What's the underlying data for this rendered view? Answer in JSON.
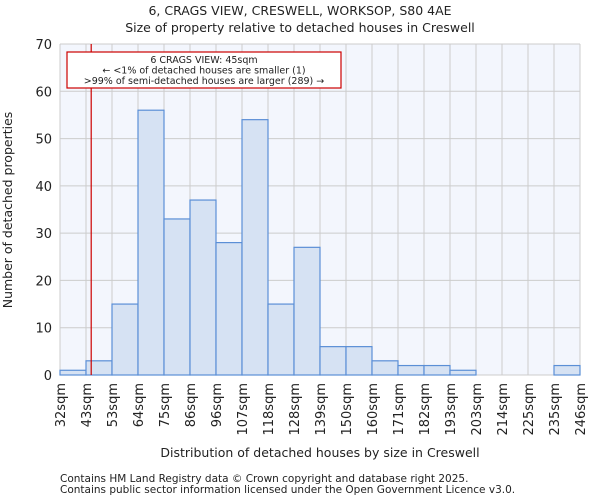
{
  "chart_data": {
    "type": "bar",
    "title": "6, CRAGS VIEW, CRESWELL, WORKSOP, S80 4AE",
    "subtitle": "Size of property relative to detached houses in Creswell",
    "xlabel": "Distribution of detached houses by size in Creswell",
    "ylabel": "Number of detached properties",
    "ylim": [
      0,
      70
    ],
    "yticks": [
      0,
      10,
      20,
      30,
      40,
      50,
      60,
      70
    ],
    "bin_edges_labels": [
      "32sqm",
      "43sqm",
      "53sqm",
      "64sqm",
      "75sqm",
      "86sqm",
      "96sqm",
      "107sqm",
      "118sqm",
      "128sqm",
      "139sqm",
      "150sqm",
      "160sqm",
      "171sqm",
      "182sqm",
      "193sqm",
      "203sqm",
      "214sqm",
      "225sqm",
      "235sqm",
      "246sqm"
    ],
    "values": [
      1,
      3,
      15,
      56,
      33,
      37,
      28,
      54,
      15,
      27,
      6,
      6,
      3,
      2,
      2,
      1,
      0,
      0,
      0,
      2
    ],
    "grid": true,
    "marker": {
      "value_sqm": 45,
      "color": "#cc0000"
    },
    "annotation": {
      "lines": [
        "6 CRAGS VIEW: 45sqm",
        "← <1% of detached houses are smaller (1)",
        ">99% of semi-detached houses are larger (289) →"
      ]
    },
    "colors": {
      "bar_fill": "#d6e2f3",
      "bar_stroke": "#5b8fd6",
      "plot_bg": "#f3f6fd",
      "grid": "#cccccc"
    }
  },
  "footer": {
    "line1": "Contains HM Land Registry data © Crown copyright and database right 2025.",
    "line2": "Contains public sector information licensed under the Open Government Licence v3.0."
  }
}
